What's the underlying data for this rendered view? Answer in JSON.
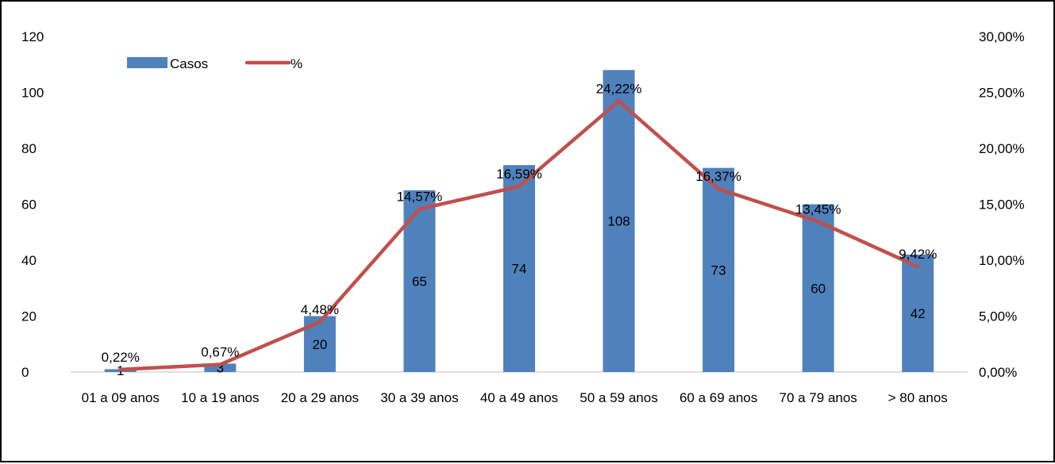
{
  "chart_data": {
    "type": "bar",
    "categories": [
      "01 a 09 anos",
      "10 a 19 anos",
      "20 a 29 anos",
      "30 a 39 anos",
      "40 a 49 anos",
      "50 a 59 anos",
      "60 a 69 anos",
      "70 a 79 anos",
      "> 80 anos"
    ],
    "series": [
      {
        "name": "Casos",
        "type": "bar",
        "axis": "left",
        "color": "#4F81BD",
        "values": [
          1,
          3,
          20,
          65,
          74,
          108,
          73,
          60,
          42
        ],
        "labels": [
          "1",
          "3",
          "20",
          "65",
          "74",
          "108",
          "73",
          "60",
          "42"
        ]
      },
      {
        "name": "%",
        "type": "line",
        "axis": "right",
        "color": "#C0504D",
        "values": [
          0.22,
          0.67,
          4.48,
          14.57,
          16.59,
          24.22,
          16.37,
          13.45,
          9.42
        ],
        "labels": [
          "0,22%",
          "0,67%",
          "4,48%",
          "14,57%",
          "16,59%",
          "24,22%",
          "16,37%",
          "13,45%",
          "9,42%"
        ]
      }
    ],
    "y_left": {
      "min": 0,
      "max": 120,
      "ticks": [
        "0",
        "20",
        "40",
        "60",
        "80",
        "100",
        "120"
      ]
    },
    "y_right": {
      "min": 0,
      "max": 30,
      "ticks": [
        "0,00%",
        "5,00%",
        "10,00%",
        "15,00%",
        "20,00%",
        "25,00%",
        "30,00%"
      ]
    },
    "legend": {
      "placement": "top-left",
      "entries": [
        "Casos",
        "%"
      ]
    },
    "grid": false,
    "title": "",
    "xlabel": "",
    "ylabel": ""
  }
}
